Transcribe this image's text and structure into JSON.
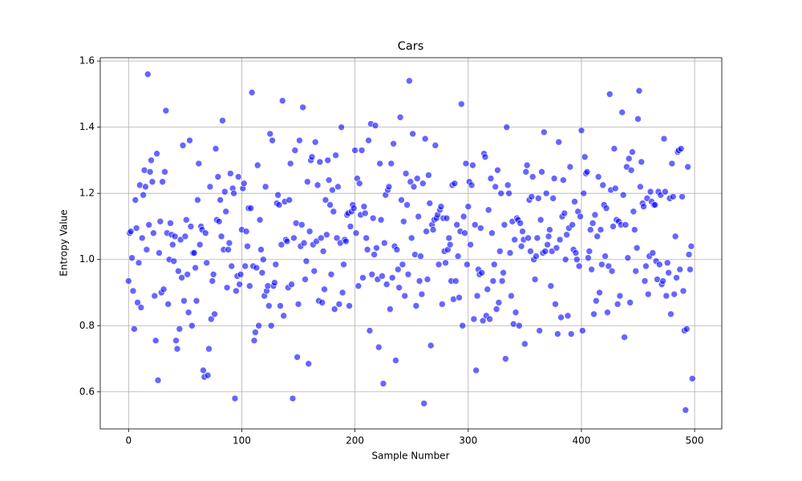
{
  "chart_data": {
    "type": "scatter",
    "title": "Cars",
    "x_label": "Sample Number",
    "y_label": "Entropy Value",
    "color": "#0000ff",
    "grid": true,
    "xlim": [
      -25,
      524
    ],
    "ylim": [
      0.488,
      1.61
    ],
    "xticks": [
      0,
      100,
      200,
      300,
      400,
      500
    ],
    "yticks": [
      0.6,
      0.8,
      {
        "value": 1,
        "label": "1.0"
      },
      1.2,
      1.4,
      1.6
    ],
    "x": [
      0,
      1,
      2,
      3,
      4,
      5,
      6,
      7,
      8,
      9,
      10,
      11,
      12,
      13,
      14,
      15,
      16,
      17,
      18,
      19,
      20,
      21,
      22,
      23,
      24,
      25,
      26,
      27,
      28,
      29,
      30,
      31,
      32,
      33,
      34,
      35,
      36,
      37,
      38,
      39,
      40,
      41,
      42,
      43,
      44,
      45,
      46,
      47,
      48,
      49,
      50,
      51,
      52,
      53,
      54,
      55,
      56,
      57,
      58,
      59,
      60,
      61,
      62,
      63,
      64,
      65,
      66,
      67,
      68,
      69,
      70,
      71,
      72,
      73,
      74,
      75,
      76,
      77,
      78,
      79,
      80,
      81,
      82,
      83,
      84,
      85,
      86,
      87,
      88,
      89,
      90,
      91,
      92,
      93,
      94,
      95,
      96,
      97,
      98,
      99,
      100,
      101,
      102,
      103,
      104,
      105,
      106,
      107,
      108,
      109,
      110,
      111,
      112,
      113,
      114,
      115,
      116,
      117,
      118,
      119,
      120,
      121,
      122,
      123,
      124,
      125,
      126,
      127,
      128,
      129,
      130,
      131,
      132,
      133,
      134,
      135,
      136,
      137,
      138,
      139,
      140,
      141,
      142,
      143,
      144,
      145,
      146,
      147,
      148,
      149,
      150,
      151,
      152,
      153,
      154,
      155,
      156,
      157,
      158,
      159,
      160,
      161,
      162,
      163,
      164,
      165,
      166,
      167,
      168,
      169,
      170,
      171,
      172,
      173,
      174,
      175,
      176,
      177,
      178,
      179,
      180,
      181,
      182,
      183,
      184,
      185,
      186,
      187,
      188,
      189,
      190,
      191,
      192,
      193,
      194,
      195,
      196,
      197,
      198,
      199,
      200,
      201,
      202,
      203,
      204,
      205,
      206,
      207,
      208,
      209,
      210,
      211,
      212,
      213,
      214,
      215,
      216,
      217,
      218,
      219,
      220,
      221,
      222,
      223,
      224,
      225,
      226,
      227,
      228,
      229,
      230,
      231,
      232,
      233,
      234,
      235,
      236,
      237,
      238,
      239,
      240,
      241,
      242,
      243,
      244,
      245,
      246,
      247,
      248,
      249,
      250,
      251,
      252,
      253,
      254,
      255,
      256,
      257,
      258,
      259,
      260,
      261,
      262,
      263,
      264,
      265,
      266,
      267,
      268,
      269,
      270,
      271,
      272,
      273,
      274,
      275,
      276,
      277,
      278,
      279,
      280,
      281,
      282,
      283,
      284,
      285,
      286,
      287,
      288,
      289,
      290,
      291,
      292,
      293,
      294,
      295,
      296,
      297,
      298,
      299,
      300,
      301,
      302,
      303,
      304,
      305,
      306,
      307,
      308,
      309,
      310,
      311,
      312,
      313,
      314,
      315,
      316,
      317,
      318,
      319,
      320,
      321,
      322,
      323,
      324,
      325,
      326,
      327,
      328,
      329,
      330,
      331,
      332,
      333,
      334,
      335,
      336,
      337,
      338,
      339,
      340,
      341,
      342,
      343,
      344,
      345,
      346,
      347,
      348,
      349,
      350,
      351,
      352,
      353,
      354,
      355,
      356,
      357,
      358,
      359,
      360,
      361,
      362,
      363,
      364,
      365,
      366,
      367,
      368,
      369,
      370,
      371,
      372,
      373,
      374,
      375,
      376,
      377,
      378,
      379,
      380,
      381,
      382,
      383,
      384,
      385,
      386,
      387,
      388,
      389,
      390,
      391,
      392,
      393,
      394,
      395,
      396,
      397,
      398,
      399,
      400,
      401,
      402,
      403,
      404,
      405,
      406,
      407,
      408,
      409,
      410,
      411,
      412,
      413,
      414,
      415,
      416,
      417,
      418,
      419,
      420,
      421,
      422,
      423,
      424,
      425,
      426,
      427,
      428,
      429,
      430,
      431,
      432,
      433,
      434,
      435,
      436,
      437,
      438,
      439,
      440,
      441,
      442,
      443,
      444,
      445,
      446,
      447,
      448,
      449,
      450,
      451,
      452,
      453,
      454,
      455,
      456,
      457,
      458,
      459,
      460,
      461,
      462,
      463,
      464,
      465,
      466,
      467,
      468,
      469,
      470,
      471,
      472,
      473,
      474,
      475,
      476,
      477,
      478,
      479,
      480,
      481,
      482,
      483,
      484,
      485,
      486,
      487,
      488,
      489,
      490,
      491,
      492,
      493,
      494,
      495,
      496,
      497,
      498
    ],
    "values": [
      0.935,
      1.08,
      1.085,
      1.005,
      0.905,
      0.79,
      1.18,
      1.095,
      0.87,
      0.99,
      1.225,
      0.855,
      1.065,
      1.195,
      1.27,
      1.22,
      1.03,
      1.56,
      1.105,
      1.265,
      1.3,
      1.235,
      1.08,
      0.89,
      0.755,
      1.32,
      0.635,
      1.02,
      1.115,
      0.9,
      1.235,
      0.91,
      1.265,
      1.45,
      1.08,
      0.865,
      1.0,
      1.11,
      1.075,
      1.045,
      0.995,
      1.07,
      0.755,
      0.73,
      0.965,
      0.79,
      1.06,
      0.945,
      1.345,
      0.875,
      1.07,
      1.12,
      0.955,
      0.84,
      1.36,
      1.1,
      0.8,
      1.02,
      1.02,
      0.975,
      0.875,
      1.18,
      1.29,
      1.045,
      1.1,
      1.09,
      0.665,
      0.645,
      1.08,
      0.99,
      0.65,
      0.73,
      1.22,
      0.82,
      0.935,
      0.955,
      0.835,
      1.335,
      1.12,
      1.25,
      1.115,
      1.18,
      1.07,
      1.42,
      1.03,
      1.205,
      1.145,
      0.915,
      1.03,
      1.05,
      1.26,
      0.98,
      1.215,
      1.2,
      0.58,
      0.905,
      0.95,
      1.25,
      0.925,
      0.955,
      1.09,
      1.215,
      1.23,
      0.98,
      1.085,
      1.04,
      1.155,
      0.92,
      1.155,
      1.505,
      0.98,
      0.755,
      0.78,
      0.975,
      1.285,
      0.8,
      1.12,
      1.03,
      0.96,
      1.0,
      0.89,
      1.22,
      0.905,
      0.92,
      0.86,
      1.38,
      0.8,
      1.36,
      0.92,
      0.93,
      0.985,
      1.17,
      1.195,
      1.165,
      0.86,
      1.045,
      1.48,
      0.83,
      1.175,
      1.06,
      1.055,
      0.915,
      1.18,
      1.29,
      0.925,
      0.58,
      1.065,
      1.33,
      1.11,
      0.705,
      0.865,
      1.36,
      1.04,
      1.105,
      1.46,
      1.05,
      0.94,
      0.995,
      1.235,
      0.685,
      1.085,
      1.3,
      1.31,
      1.045,
      0.965,
      1.355,
      1.055,
      1.225,
      0.875,
      1.295,
      1.065,
      0.87,
      1.025,
      0.91,
      1.18,
      1.075,
      1.3,
      1.24,
      1.165,
      0.955,
      1.21,
      1.145,
      0.85,
      1.315,
      1.065,
      1.22,
      0.865,
      1.05,
      1.4,
      0.9,
      0.985,
      1.06,
      1.055,
      1.135,
      1.14,
      0.86,
      1.1,
      1.145,
      1.165,
      1.155,
      1.33,
      1.08,
      1.245,
      0.92,
      1.23,
      1.135,
      1.33,
      0.945,
      1.16,
      1.14,
      1.065,
      1.03,
      1.36,
      0.785,
      1.41,
      0.955,
      1.125,
      1.015,
      1.405,
      1.035,
      0.94,
      0.735,
      1.29,
      1.12,
      0.95,
      0.625,
      1.05,
      1.195,
      0.925,
      1.21,
      1.22,
      0.85,
      1.29,
      0.945,
      1.35,
      1.04,
      0.695,
      1.03,
      0.97,
      0.915,
      1.43,
      1.18,
      0.985,
      1.115,
      0.89,
      1.26,
      1.165,
      0.955,
      1.54,
      1.235,
      1.065,
      1.38,
      1.22,
      1.015,
      0.86,
      1.245,
      1.13,
      0.935,
      1.01,
      0.895,
      1.23,
      0.565,
      1.365,
      1.085,
      0.94,
      1.255,
      1.17,
      0.74,
      1.105,
      1.09,
      1.12,
      1.345,
      1.125,
      1.135,
      0.985,
      1.15,
      1.16,
      0.865,
      1.125,
      1.025,
      0.99,
      1.125,
      1.03,
      1.065,
      1.045,
      0.935,
      1.225,
      0.88,
      1.23,
      0.935,
      1.105,
      1.01,
      0.885,
      1.085,
      1.47,
      0.8,
      1.13,
      1.08,
      1.29,
      0.985,
      1.16,
      1.235,
      1.045,
      1.225,
      1.285,
      0.82,
      1.105,
      0.665,
      0.89,
      0.97,
      0.955,
      1.095,
      0.96,
      0.815,
      1.32,
      1.31,
      0.83,
      0.91,
      1.15,
      0.82,
      1.245,
      1.08,
      0.935,
      0.985,
      1.22,
      0.85,
      1.27,
      0.87,
      1.025,
      1.2,
      0.935,
      0.96,
      1.105,
      0.7,
      1.4,
      1.225,
      1.2,
      1.02,
      0.89,
      1.115,
      0.805,
      1.06,
      0.84,
      1.125,
      1.12,
      0.8,
      1.11,
      1.04,
      1.085,
      1.06,
      0.745,
      1.265,
      1.285,
      1.065,
      1.18,
      1.025,
      1.19,
      1.25,
      1.0,
      0.94,
      1.01,
      1.065,
      1.185,
      0.785,
      1.12,
      1.265,
      1.02,
      1.385,
      1.025,
      1.2,
      1.045,
      1.07,
      1.09,
      0.92,
      1.025,
      1.185,
      1.245,
      0.865,
      1.035,
      0.775,
      1.355,
      1.06,
      0.825,
      1.13,
      1.24,
      1.14,
      1.0,
      1.075,
      0.83,
      1.095,
      1.28,
      0.775,
      1.105,
      1.03,
      1.175,
      1.02,
      1.0,
      1.145,
      0.98,
      1.13,
      1.39,
      0.785,
      1.2,
      1.31,
      1.26,
      1.265,
      1.005,
      1.025,
      1.09,
      0.97,
      1.11,
      0.835,
      1.135,
      0.875,
      1.07,
      1.25,
      0.9,
      1.09,
      0.985,
      1.225,
      1.165,
      1.01,
      1.155,
      0.84,
      0.98,
      1.5,
      1.21,
      0.965,
      1.1,
      1.335,
      1.215,
      1.12,
      0.865,
      1.115,
      0.89,
      1.105,
      1.445,
      1.195,
      0.765,
      1.105,
      1.28,
      1.005,
      1.305,
      0.87,
      1.27,
      1.325,
      1.145,
      1.09,
      0.965,
      1.035,
      1.425,
      1.51,
      1.22,
      1.295,
      1.17,
      1.16,
      0.935,
      0.98,
      1.185,
      0.895,
      1.01,
      1.205,
      1.175,
      1.02,
      1.165,
      1.165,
      0.995,
      0.94,
      1.205,
      0.985,
      1.195,
      0.925,
      0.935,
      1.365,
      1.205,
      0.89,
      0.99,
      0.96,
      1.185,
      0.835,
      1.29,
      1.19,
      0.895,
      1.07,
      0.945,
      1.325,
      1.33,
      0.97,
      1.335,
      1.19,
      0.905,
      0.785,
      0.545,
      0.79,
      1.28,
      1.015,
      0.97,
      1.04,
      0.64
    ]
  }
}
